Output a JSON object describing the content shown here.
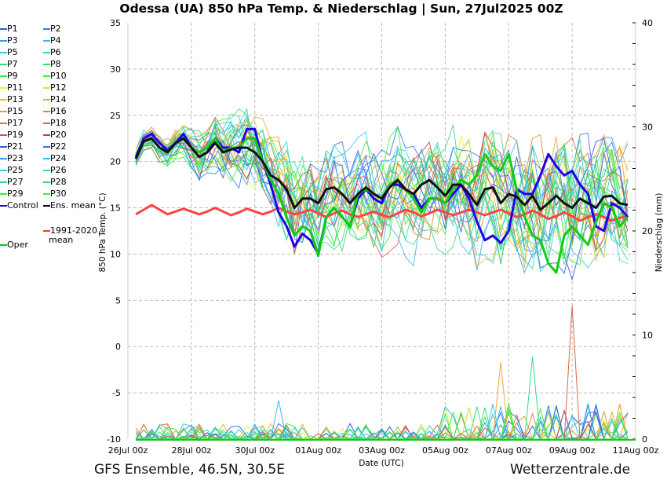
{
  "title": "Odessa  (UA)  850 hPa Temp. & Niederschlag | Sun, 27Jul2025 00Z",
  "footer": {
    "left": "GFS Ensemble, 46.5N, 30.5E",
    "right": "Wetterzentrale.de"
  },
  "legend": [
    {
      "name": "P1",
      "color": "#3355ee"
    },
    {
      "name": "P2",
      "color": "#3377ee"
    },
    {
      "name": "P3",
      "color": "#3399ee"
    },
    {
      "name": "P4",
      "color": "#33bbee"
    },
    {
      "name": "P5",
      "color": "#33ccdd"
    },
    {
      "name": "P6",
      "color": "#33ddaa"
    },
    {
      "name": "P7",
      "color": "#33dd88"
    },
    {
      "name": "P8",
      "color": "#33dd66"
    },
    {
      "name": "P9",
      "color": "#33ee44"
    },
    {
      "name": "P10",
      "color": "#44ee33"
    },
    {
      "name": "P11",
      "color": "#eeee33"
    },
    {
      "name": "P12",
      "color": "#eedd33"
    },
    {
      "name": "P13",
      "color": "#eebb33"
    },
    {
      "name": "P14",
      "color": "#eeaa33"
    },
    {
      "name": "P15",
      "color": "#ee9933"
    },
    {
      "name": "P16",
      "color": "#dd8833"
    },
    {
      "name": "P17",
      "color": "#dd7733"
    },
    {
      "name": "P18",
      "color": "#dd6644"
    },
    {
      "name": "P19",
      "color": "#cc5544"
    },
    {
      "name": "P20",
      "color": "#bb4444"
    },
    {
      "name": "P21",
      "color": "#3355ee"
    },
    {
      "name": "P22",
      "color": "#3377ee"
    },
    {
      "name": "P23",
      "color": "#3399ee"
    },
    {
      "name": "P24",
      "color": "#33bbee"
    },
    {
      "name": "P25",
      "color": "#33ccdd"
    },
    {
      "name": "P26",
      "color": "#33ddaa"
    },
    {
      "name": "P27",
      "color": "#33dd88"
    },
    {
      "name": "P28",
      "color": "#33dd66"
    },
    {
      "name": "P29",
      "color": "#33ee44"
    },
    {
      "name": "P30",
      "color": "#44ee33"
    },
    {
      "name": "Control",
      "color": "#2200ee"
    },
    {
      "name": "Ens. mean",
      "color": "#000000"
    },
    {
      "name": "1991-2020 mean",
      "color": "#ff3333"
    },
    {
      "name": "Oper",
      "color": "#00cc00"
    }
  ],
  "chart_data": {
    "type": "line",
    "title": "Odessa  (UA)  850 hPa Temp. & Niederschlag | Sun, 27Jul2025 00Z",
    "xlabel": "Date (UTC)",
    "ylabel": "850 hPa Temp. (°C)",
    "y2label": "Niederschlag (mm)",
    "ylim": [
      -10,
      35
    ],
    "y2lim": [
      0,
      40
    ],
    "yticks": [
      "-10",
      "-5",
      "0",
      "5",
      "10",
      "15",
      "20",
      "25",
      "30",
      "35"
    ],
    "y2ticks": [
      "0",
      "10",
      "20",
      "30",
      "40"
    ],
    "xticks": [
      "26Jul 00z",
      "28Jul 00z",
      "30Jul 00z",
      "01Aug 00z",
      "03Aug 00z",
      "05Aug 00z",
      "07Aug 00z",
      "09Aug 00z",
      "11Aug 00z"
    ],
    "x_range_hours": [
      0,
      384
    ],
    "x_start_hour": 6,
    "x_step_hours": 6,
    "grid": true,
    "legend_position": "left-outside",
    "series": [
      {
        "name": "Control",
        "role": "control",
        "values": [
          20.5,
          22.5,
          23,
          22,
          21.2,
          22,
          23,
          21.5,
          20.5,
          21,
          22.5,
          21.5,
          21.5,
          21,
          23.5,
          23.5,
          20,
          17.5,
          14.5,
          13,
          10.8,
          12.2,
          11.5,
          10,
          14,
          15,
          14,
          13,
          16,
          17,
          16,
          15.5,
          17.5,
          17.5,
          17,
          16.5,
          15,
          16,
          16,
          15.5,
          16.5,
          17.5,
          16,
          13.5,
          11.5,
          12,
          11.2,
          12.5,
          17,
          16.5,
          16.5,
          18.5,
          20.8,
          19.5,
          18.5,
          19,
          17.5,
          16.5,
          13,
          12.5,
          15.5,
          15,
          14
        ]
      },
      {
        "name": "Oper",
        "role": "oper",
        "values": [
          20.3,
          22.2,
          22.5,
          21.5,
          21,
          22,
          22.5,
          21.5,
          21,
          21.5,
          22.5,
          21,
          21.5,
          21.5,
          22.5,
          22.5,
          20,
          18,
          16.5,
          14,
          12,
          13,
          12.5,
          9.8,
          14,
          15,
          14,
          13,
          16.5,
          17,
          16.5,
          16,
          17.5,
          18,
          17,
          16,
          14.5,
          16,
          16,
          15.5,
          17,
          18,
          17.5,
          18.5,
          20.8,
          19.5,
          19,
          20.8,
          17,
          14,
          12,
          11.5,
          9,
          8,
          12,
          13,
          12,
          11,
          13.5,
          15.5,
          15,
          13,
          14
        ]
      },
      {
        "name": "Ens. mean",
        "role": "mean",
        "values": [
          20.3,
          22.2,
          22.5,
          21.5,
          21,
          22,
          22.5,
          21.5,
          20.5,
          21,
          22,
          21,
          21.3,
          21.5,
          21.5,
          21,
          20,
          18.5,
          18,
          17,
          15,
          16,
          16,
          15.5,
          17,
          17.2,
          16.5,
          15.5,
          16.5,
          17.2,
          16.5,
          16,
          17.2,
          18,
          17,
          16.5,
          17.5,
          18,
          17.2,
          16.3,
          17.5,
          17.5,
          16.5,
          15.3,
          17,
          17.2,
          15.5,
          16.5,
          16.2,
          15.3,
          16.3,
          14.8,
          15.5,
          16.3,
          15.5,
          15,
          16,
          15.5,
          15,
          16.2,
          16.3,
          15.5,
          15.3
        ]
      },
      {
        "name": "1991-2020 mean",
        "role": "climate",
        "values": [
          14.3,
          14.8,
          15.3,
          14.8,
          14.3,
          14.6,
          14.9,
          14.6,
          14.3,
          14.6,
          15,
          14.6,
          14.2,
          14.5,
          14.9,
          14.6,
          14.3,
          14.6,
          15,
          14.6,
          14.3,
          14.5,
          14.8,
          14.4,
          14,
          14.4,
          14.7,
          14.3,
          14,
          14.3,
          14.6,
          14.2,
          14,
          14.4,
          14.8,
          14.5,
          14.1,
          14.4,
          14.8,
          14.5,
          14.2,
          14.5,
          14.8,
          14.5,
          14.2,
          14.5,
          14.8,
          14.4,
          14,
          14.3,
          14.7,
          14.3,
          13.8,
          14.1,
          14.5,
          14.1,
          13.6,
          14,
          14.3,
          14,
          13.6,
          13.9,
          14.1
        ]
      }
    ],
    "precip_notable_peaks_mm": [
      {
        "date": "30Jul 18z",
        "max_mm": 3.7
      },
      {
        "date": "06Aug 18z",
        "max_mm": 7.4
      },
      {
        "date": "07Aug 18z",
        "max_mm": 7.9
      },
      {
        "date": "09Aug 00z",
        "max_mm": 12.8
      }
    ],
    "member_count": 30
  }
}
